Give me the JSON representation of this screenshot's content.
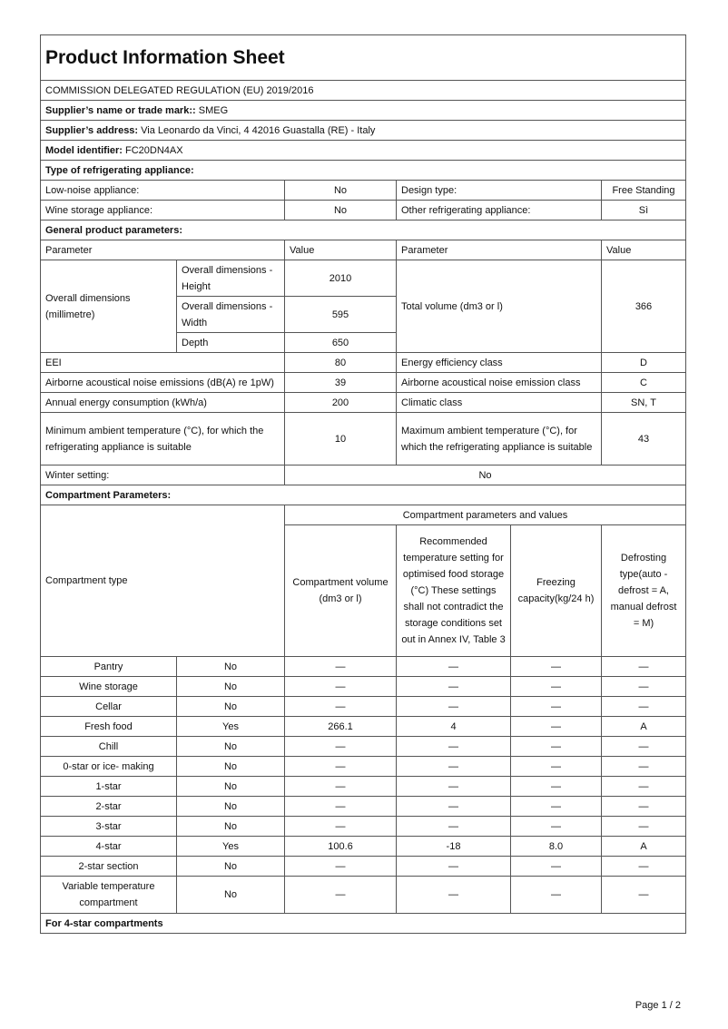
{
  "title": "Product Information Sheet",
  "regulation": "COMMISSION DELEGATED REGULATION (EU) 2019/2016",
  "supplier_name": {
    "label": "Supplier’s name or trade mark::",
    "value": "SMEG"
  },
  "supplier_address": {
    "label": "Supplier’s address:",
    "value": "Via Leonardo da Vinci, 4 42016 Guastalla (RE) - Italy"
  },
  "model": {
    "label": "Model identifier:",
    "value": "FC20DN4AX"
  },
  "type_section": "Type of refrigerating appliance:",
  "type_rows": [
    {
      "l1": "Low-noise appliance:",
      "v1": "No",
      "l2": "Design type:",
      "v2": "Free Standing"
    },
    {
      "l1": "Wine storage appliance:",
      "v1": "No",
      "l2": "Other refrigerating appliance:",
      "v2": "Sì"
    }
  ],
  "general_section": "General product parameters:",
  "general_header": {
    "param": "Parameter",
    "value": "Value",
    "param2": "Parameter",
    "value2": "Value"
  },
  "dimensions": {
    "label": "Overall dimensions (millimetre)",
    "height_label": "Overall dimensions - Height",
    "height": "2010",
    "width_label": "Overall dimensions - Width",
    "width": "595",
    "depth_label": "Depth",
    "depth": "650",
    "volume_label": "Total volume (dm3 or l)",
    "volume": "366"
  },
  "general_rows": [
    {
      "l1": "EEI",
      "v1": "80",
      "l2": "Energy efficiency class",
      "v2": "D"
    },
    {
      "l1": "Airborne acoustical noise emissions (dB(A) re 1pW)",
      "v1": "39",
      "l2": "Airborne acoustical noise emission class",
      "v2": "C"
    },
    {
      "l1": "Annual energy consumption (kWh/a)",
      "v1": "200",
      "l2": "Climatic class",
      "v2": "SN, T"
    },
    {
      "l1": "Minimum ambient temperature (°C), for which the refrigerating appliance is suitable",
      "v1": "10",
      "l2": "Maximum ambient temperature (°C), for which the refrigerating appliance is suitable",
      "v2": "43"
    }
  ],
  "winter": {
    "label": "Winter setting:",
    "value": "No"
  },
  "compartment_section": "Compartment Parameters:",
  "compartment_header": {
    "type": "Compartment type",
    "group": "Compartment parameters and values",
    "volume": "Compartment volume (dm3 or l)",
    "temp": "Recommended temperature setting for optimised food storage (°C) These settings shall not contradict the storage conditions set out in Annex IV, Table 3",
    "freezing": "Freezing capacity(kg/24 h)",
    "defrost": "Defrosting type(auto - defrost = A, manual defrost = M)"
  },
  "compartments": [
    {
      "name": "Pantry",
      "present": "No",
      "volume": "—",
      "temp": "—",
      "freezing": "—",
      "defrost": "—"
    },
    {
      "name": "Wine storage",
      "present": "No",
      "volume": "—",
      "temp": "—",
      "freezing": "—",
      "defrost": "—"
    },
    {
      "name": "Cellar",
      "present": "No",
      "volume": "—",
      "temp": "—",
      "freezing": "—",
      "defrost": "—"
    },
    {
      "name": "Fresh food",
      "present": "Yes",
      "volume": "266.1",
      "temp": "4",
      "freezing": "—",
      "defrost": "A"
    },
    {
      "name": "Chill",
      "present": "No",
      "volume": "—",
      "temp": "—",
      "freezing": "—",
      "defrost": "—"
    },
    {
      "name": "0-star or ice- making",
      "present": "No",
      "volume": "—",
      "temp": "—",
      "freezing": "—",
      "defrost": "—"
    },
    {
      "name": "1-star",
      "present": "No",
      "volume": "—",
      "temp": "—",
      "freezing": "—",
      "defrost": "—"
    },
    {
      "name": "2-star",
      "present": "No",
      "volume": "—",
      "temp": "—",
      "freezing": "—",
      "defrost": "—"
    },
    {
      "name": "3-star",
      "present": "No",
      "volume": "—",
      "temp": "—",
      "freezing": "—",
      "defrost": "—"
    },
    {
      "name": "4-star",
      "present": "Yes",
      "volume": "100.6",
      "temp": "-18",
      "freezing": "8.0",
      "defrost": "A"
    },
    {
      "name": "2-star section",
      "present": "No",
      "volume": "—",
      "temp": "—",
      "freezing": "—",
      "defrost": "—"
    },
    {
      "name": "Variable temperature compartment",
      "present": "No",
      "volume": "—",
      "temp": "—",
      "freezing": "—",
      "defrost": "—"
    }
  ],
  "four_star_section": "For 4-star compartments",
  "page": "Page 1 / 2"
}
